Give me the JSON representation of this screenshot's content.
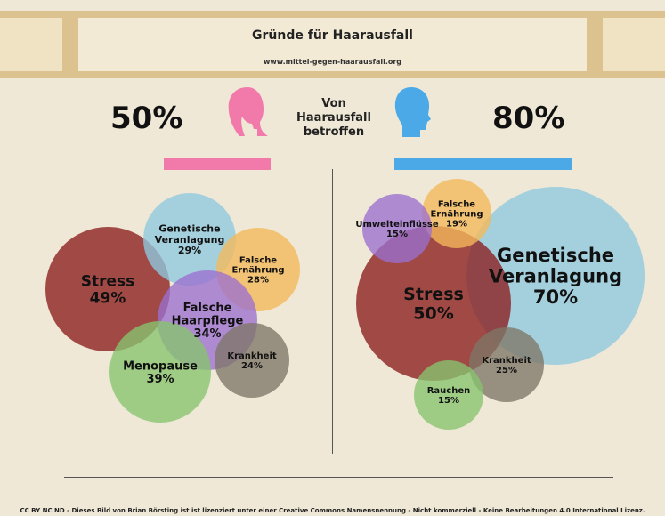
{
  "header": {
    "title": "Gründe für Haarausfall",
    "url": "www.mittel-gegen-haarausfall.org"
  },
  "affected": {
    "label_lines": [
      "Von",
      "Haarausfall",
      "betroffen"
    ],
    "women_pct": "50%",
    "men_pct": "80%",
    "women_icon": "female-head-icon",
    "men_icon": "male-head-icon",
    "women_color": "#f27aaa",
    "men_color": "#4aa9e6"
  },
  "footer": "CC BY NC ND - Dieses Bild von Brian Börsting ist ist lizenziert unter einer Creative Commons Namensnennung - Nicht kommerziell - Keine Bearbeitungen 4.0 International Lizenz.",
  "chart_data": [
    {
      "type": "bubble",
      "group": "women",
      "series": [
        {
          "label": [
            "Stress"
          ],
          "value": 49,
          "color": "#8b1c1c"
        },
        {
          "label": [
            "Genetische",
            "Veranlagung"
          ],
          "value": 29,
          "color": "#8ec9e0"
        },
        {
          "label": [
            "Falsche",
            "Ernährung"
          ],
          "value": 28,
          "color": "#f3b95a"
        },
        {
          "label": [
            "Falsche",
            "Haarpflege"
          ],
          "value": 34,
          "color": "#9b6fd0"
        },
        {
          "label": [
            "Menopause"
          ],
          "value": 39,
          "color": "#86c46e"
        },
        {
          "label": [
            "Krankheit"
          ],
          "value": 24,
          "color": "#7d7667"
        }
      ]
    },
    {
      "type": "bubble",
      "group": "men",
      "series": [
        {
          "label": [
            "Genetische",
            "Veranlagung"
          ],
          "value": 70,
          "color": "#8ec9e0"
        },
        {
          "label": [
            "Stress"
          ],
          "value": 50,
          "color": "#8b1c1c"
        },
        {
          "label": [
            "Falsche",
            "Ernährung"
          ],
          "value": 19,
          "color": "#f3b95a"
        },
        {
          "label": [
            "Umwelteinflüsse"
          ],
          "value": 15,
          "color": "#9b6fd0"
        },
        {
          "label": [
            "Krankheit"
          ],
          "value": 25,
          "color": "#7d7667"
        },
        {
          "label": [
            "Rauchen"
          ],
          "value": 15,
          "color": "#86c46e"
        }
      ]
    }
  ]
}
